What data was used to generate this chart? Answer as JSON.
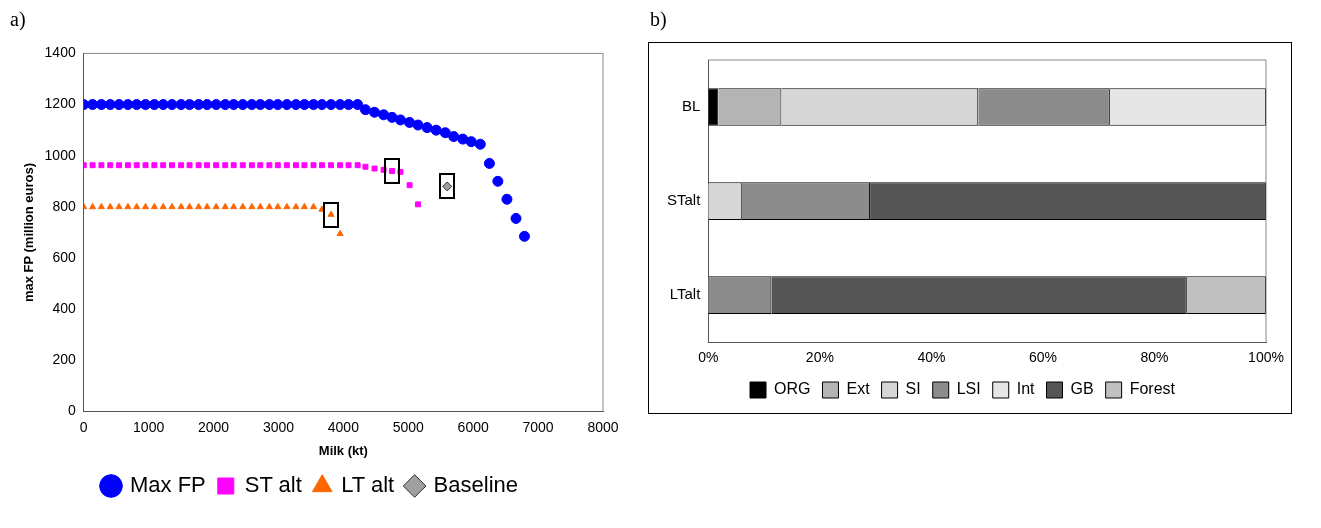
{
  "chart_data": [
    {
      "type": "scatter",
      "title": "a)",
      "xlabel": "Milk (kt)",
      "ylabel": "max FP (million euros)",
      "xlim": [
        0,
        8000
      ],
      "xticks": [
        0,
        1000,
        2000,
        3000,
        4000,
        5000,
        6000,
        7000,
        8000
      ],
      "ylim": [
        0,
        1400
      ],
      "yticks": [
        0,
        200,
        400,
        600,
        800,
        1000,
        1200,
        1400
      ],
      "legend": "bottom",
      "series": [
        {
          "name": "Max FP",
          "color": "#0000ff",
          "marker": "circle",
          "x": [
            0,
            136,
            272,
            408,
            544,
            680,
            816,
            952,
            1088,
            1224,
            1360,
            1500,
            1630,
            1770,
            1900,
            2040,
            2180,
            2310,
            2450,
            2590,
            2720,
            2860,
            2990,
            3130,
            3270,
            3400,
            3540,
            3670,
            3810,
            3950,
            4080,
            4220,
            4340,
            4480,
            4620,
            4750,
            4880,
            5020,
            5150,
            5290,
            5430,
            5570,
            5700,
            5840,
            5970,
            6110,
            6250,
            6380,
            6520,
            6660,
            6790
          ],
          "values": [
            1200,
            1200,
            1200,
            1200,
            1200,
            1200,
            1200,
            1200,
            1200,
            1200,
            1200,
            1200,
            1200,
            1200,
            1200,
            1200,
            1200,
            1200,
            1200,
            1200,
            1200,
            1200,
            1200,
            1200,
            1200,
            1200,
            1200,
            1200,
            1200,
            1200,
            1200,
            1200,
            1180,
            1170,
            1160,
            1150,
            1140,
            1130,
            1120,
            1110,
            1100,
            1090,
            1075,
            1065,
            1055,
            1045,
            970,
            900,
            830,
            755,
            685
          ]
        },
        {
          "name": "ST alt",
          "color": "#ff00ff",
          "marker": "square",
          "x": [
            0,
            136,
            272,
            408,
            544,
            680,
            816,
            952,
            1088,
            1224,
            1360,
            1500,
            1630,
            1770,
            1900,
            2040,
            2180,
            2310,
            2450,
            2590,
            2720,
            2860,
            2990,
            3130,
            3270,
            3400,
            3540,
            3670,
            3810,
            3950,
            4080,
            4220,
            4340,
            4480,
            4620,
            4750,
            4880,
            5020,
            5150
          ],
          "values": [
            963,
            963,
            963,
            963,
            963,
            963,
            963,
            963,
            963,
            963,
            963,
            963,
            963,
            963,
            963,
            963,
            963,
            963,
            963,
            963,
            963,
            963,
            963,
            963,
            963,
            963,
            963,
            963,
            963,
            963,
            963,
            963,
            957,
            950,
            945,
            940,
            937,
            885,
            810
          ]
        },
        {
          "name": "LT alt",
          "color": "#ff6600",
          "marker": "triangle",
          "x": [
            0,
            136,
            272,
            408,
            544,
            680,
            816,
            952,
            1088,
            1224,
            1360,
            1500,
            1630,
            1770,
            1900,
            2040,
            2180,
            2310,
            2450,
            2590,
            2720,
            2860,
            2990,
            3130,
            3270,
            3400,
            3540,
            3670,
            3810,
            3950
          ],
          "values": [
            800,
            800,
            800,
            800,
            800,
            800,
            800,
            800,
            800,
            800,
            800,
            800,
            800,
            800,
            800,
            800,
            800,
            800,
            800,
            800,
            800,
            800,
            800,
            800,
            800,
            800,
            800,
            790,
            770,
            695
          ]
        },
        {
          "name": "Baseline",
          "color": "#a0a0a0",
          "marker": "diamond",
          "x": [
            5600
          ],
          "values": [
            880
          ]
        }
      ]
    },
    {
      "type": "bar",
      "title": "b)",
      "orientation": "horizontal",
      "stacked": true,
      "categories": [
        "BL",
        "STalt",
        "LTalt"
      ],
      "xlim": [
        0,
        100
      ],
      "xticks": [
        {
          "value": 0,
          "label": "0%"
        },
        {
          "value": 20,
          "label": "20%"
        },
        {
          "value": 40,
          "label": "40%"
        },
        {
          "value": 60,
          "label": "60%"
        },
        {
          "value": 80,
          "label": "80%"
        },
        {
          "value": 100,
          "label": "100%"
        }
      ],
      "legend": "bottom",
      "series": [
        {
          "name": "ORG",
          "color": "#000000",
          "values": [
            1.8,
            null,
            null
          ]
        },
        {
          "name": "Ext",
          "color": "#b4b4b4",
          "values": [
            11.3,
            null,
            null
          ]
        },
        {
          "name": "SI",
          "color": "#d6d6d6",
          "values": [
            35.3,
            6,
            null
          ]
        },
        {
          "name": "LSI",
          "color": "#8c8c8c",
          "values": [
            23.6,
            23,
            11.3
          ]
        },
        {
          "name": "Int",
          "color": "#e6e6e6",
          "values": [
            28,
            null,
            null
          ]
        },
        {
          "name": "GB",
          "color": "#555555",
          "values": [
            null,
            71,
            74.5
          ]
        },
        {
          "name": "Forest",
          "color": "#c0c0c0",
          "values": [
            null,
            null,
            14.2
          ]
        }
      ]
    }
  ]
}
